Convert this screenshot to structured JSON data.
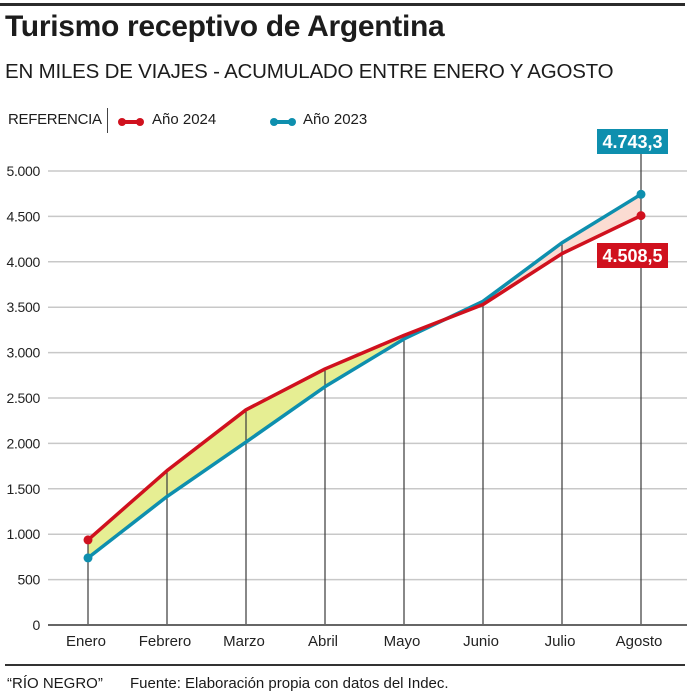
{
  "header": {
    "title": "Turismo receptivo de Argentina",
    "subtitle": "EN MILES DE VIAJES - ACUMULADO ENTRE ENERO Y AGOSTO"
  },
  "legend": {
    "label": "REFERENCIA",
    "items": [
      {
        "name": "Año 2024",
        "color": "#d0111e"
      },
      {
        "name": "Año 2023",
        "color": "#0e8fae"
      }
    ]
  },
  "chart_data": {
    "type": "line",
    "title": "Turismo receptivo de Argentina",
    "subtitle": "EN MILES DE VIAJES - ACUMULADO ENTRE ENERO Y AGOSTO",
    "xlabel": "",
    "ylabel": "",
    "categories": [
      "Enero",
      "Febrero",
      "Marzo",
      "Abril",
      "Mayo",
      "Junio",
      "Julio",
      "Agosto"
    ],
    "series": [
      {
        "name": "Año 2024",
        "color": "#d0111e",
        "values": [
          937,
          1700,
          2370,
          2820,
          3190,
          3530,
          4090,
          4508.5
        ]
      },
      {
        "name": "Año 2023",
        "color": "#0e8fae",
        "values": [
          739,
          1415,
          2015,
          2625,
          3150,
          3565,
          4210,
          4743.3
        ]
      }
    ],
    "ylim": [
      0,
      5000
    ],
    "yticks": [
      0,
      500,
      1000,
      1500,
      2000,
      2500,
      3000,
      3500,
      4000,
      4500,
      5000
    ],
    "ytick_labels": [
      "0",
      "500",
      "1.000",
      "1.500",
      "2.000",
      "2.500",
      "3.000",
      "3.500",
      "4.000",
      "4.500",
      "5.000"
    ],
    "grid": true,
    "legend_position": "top-left",
    "fill_between": {
      "above_2024_color": "#e6ee93",
      "above_2023_color": "#fbdcd2"
    },
    "annotations": [
      {
        "text": "4.743,3",
        "category": "Agosto",
        "series": "Año 2023",
        "bg": "#0e8fae",
        "position": "above"
      },
      {
        "text": "4.508,5",
        "category": "Agosto",
        "series": "Año 2024",
        "bg": "#d0111e",
        "position": "below"
      }
    ]
  },
  "footer": {
    "credit": "“RÍO NEGRO”",
    "source": "Fuente: Elaboración propia con datos del Indec."
  }
}
